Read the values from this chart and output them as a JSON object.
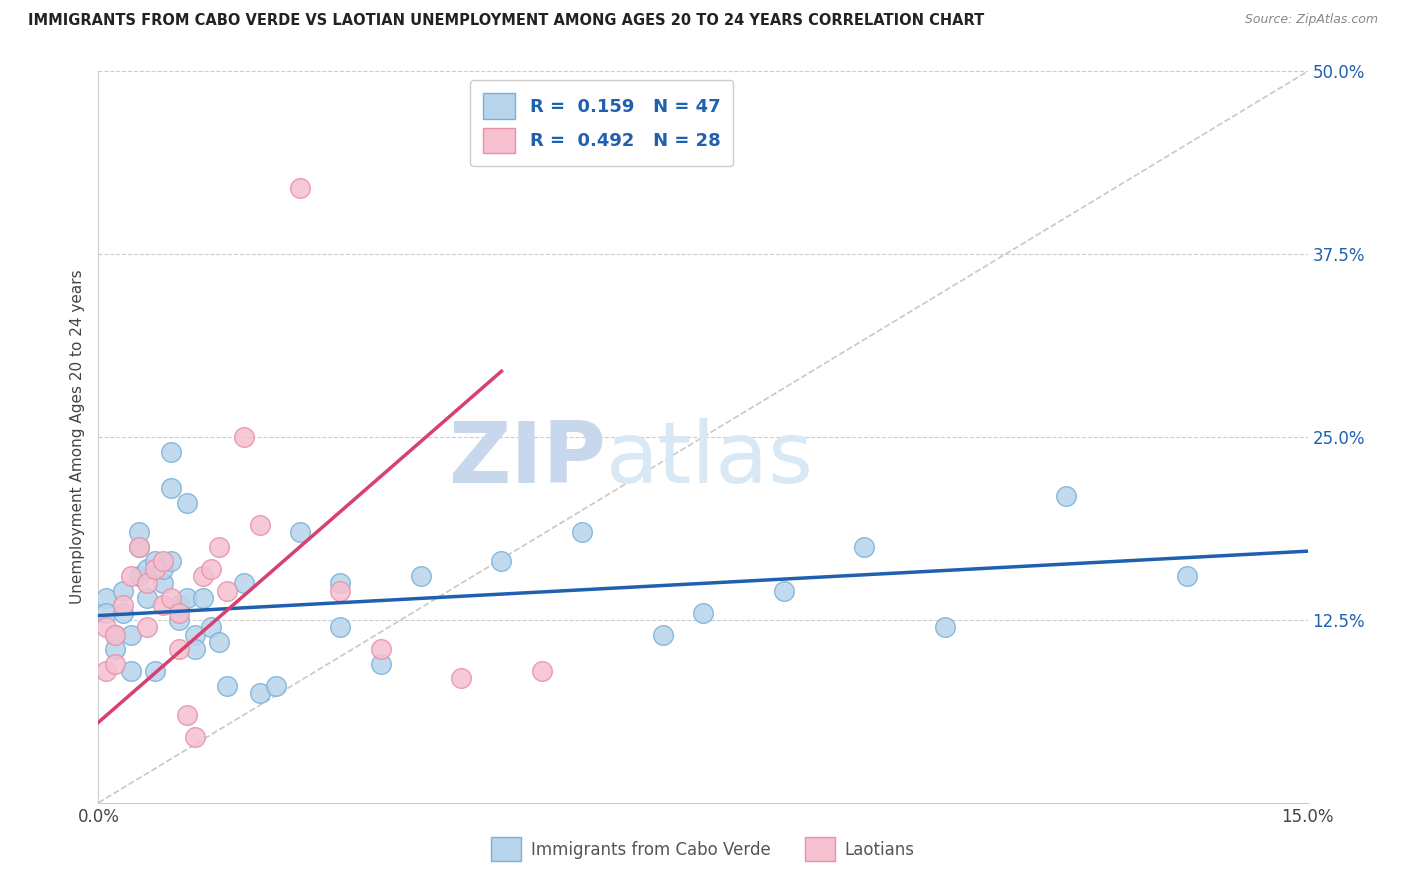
{
  "title": "IMMIGRANTS FROM CABO VERDE VS LAOTIAN UNEMPLOYMENT AMONG AGES 20 TO 24 YEARS CORRELATION CHART",
  "source": "Source: ZipAtlas.com",
  "ylabel": "Unemployment Among Ages 20 to 24 years",
  "xlim": [
    0.0,
    0.15
  ],
  "ylim": [
    0.0,
    0.5
  ],
  "yticks_right": [
    0.0,
    0.125,
    0.25,
    0.375,
    0.5
  ],
  "ytick_right_labels": [
    "",
    "12.5%",
    "25.0%",
    "37.5%",
    "50.0%"
  ],
  "blue_color": "#b8d4eb",
  "blue_edge": "#7ab0d8",
  "pink_color": "#f5c0d0",
  "pink_edge": "#e890a8",
  "blue_line_color": "#2060b0",
  "pink_line_color": "#d84070",
  "diagonal_color": "#c8c8c8",
  "watermark_zip": "ZIP",
  "watermark_atlas": "atlas",
  "legend_R1_val": "0.159",
  "legend_N1_val": "47",
  "legend_R2_val": "0.492",
  "legend_N2_val": "28",
  "blue_x": [
    0.001,
    0.001,
    0.002,
    0.002,
    0.003,
    0.003,
    0.004,
    0.004,
    0.005,
    0.005,
    0.005,
    0.006,
    0.006,
    0.007,
    0.007,
    0.008,
    0.008,
    0.009,
    0.009,
    0.009,
    0.01,
    0.01,
    0.011,
    0.011,
    0.012,
    0.012,
    0.013,
    0.014,
    0.015,
    0.016,
    0.018,
    0.02,
    0.022,
    0.025,
    0.03,
    0.03,
    0.035,
    0.04,
    0.05,
    0.06,
    0.07,
    0.075,
    0.085,
    0.095,
    0.105,
    0.12,
    0.135
  ],
  "blue_y": [
    0.14,
    0.13,
    0.115,
    0.105,
    0.13,
    0.145,
    0.115,
    0.09,
    0.175,
    0.185,
    0.155,
    0.14,
    0.16,
    0.165,
    0.09,
    0.15,
    0.16,
    0.24,
    0.215,
    0.165,
    0.125,
    0.135,
    0.205,
    0.14,
    0.115,
    0.105,
    0.14,
    0.12,
    0.11,
    0.08,
    0.15,
    0.075,
    0.08,
    0.185,
    0.15,
    0.12,
    0.095,
    0.155,
    0.165,
    0.185,
    0.115,
    0.13,
    0.145,
    0.175,
    0.12,
    0.21,
    0.155
  ],
  "pink_x": [
    0.001,
    0.001,
    0.002,
    0.002,
    0.003,
    0.004,
    0.005,
    0.006,
    0.006,
    0.007,
    0.008,
    0.008,
    0.009,
    0.01,
    0.01,
    0.011,
    0.012,
    0.013,
    0.014,
    0.015,
    0.016,
    0.018,
    0.02,
    0.025,
    0.03,
    0.035,
    0.045,
    0.055
  ],
  "pink_y": [
    0.12,
    0.09,
    0.115,
    0.095,
    0.135,
    0.155,
    0.175,
    0.15,
    0.12,
    0.16,
    0.165,
    0.135,
    0.14,
    0.13,
    0.105,
    0.06,
    0.045,
    0.155,
    0.16,
    0.175,
    0.145,
    0.25,
    0.19,
    0.42,
    0.145,
    0.105,
    0.085,
    0.09
  ],
  "blue_trend_x0": 0.0,
  "blue_trend_y0": 0.128,
  "blue_trend_x1": 0.15,
  "blue_trend_y1": 0.172,
  "pink_trend_x0": 0.0,
  "pink_trend_y0": 0.055,
  "pink_trend_x1": 0.05,
  "pink_trend_y1": 0.295
}
